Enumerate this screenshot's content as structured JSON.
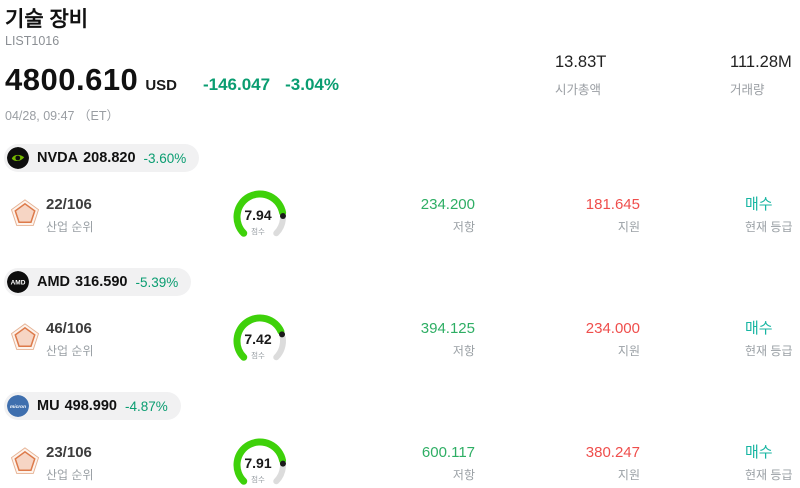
{
  "header": {
    "title": "기술 장비",
    "list_id": "LIST1016",
    "price": "4800.610",
    "currency": "USD",
    "change_abs": "-146.047",
    "change_pct": "-3.04%",
    "datetime": "04/28, 09:47 （ET）",
    "market_cap_value": "13.83T",
    "market_cap_label": "시가총액",
    "volume_value": "111.28M",
    "volume_label": "거래량"
  },
  "labels": {
    "industry_rank": "산업 순위",
    "score": "점수",
    "resistance": "저항",
    "support": "지원",
    "current_rating": "현재 등급"
  },
  "colors": {
    "accent_green": "#0a9d71",
    "resistance_green": "#2eae64",
    "support_red": "#ef4e4c",
    "buy_teal": "#17b5a2",
    "gauge_green": "#3ed10a",
    "gauge_track": "#dcdcdc",
    "badge_bg": "#f1f1f2",
    "nvidia_green": "#76b900",
    "micron_blue": "#3f6fae"
  },
  "stocks": [
    {
      "logo": "nvidia-logo",
      "ticker": "NVDA",
      "price": "208.820",
      "change": "-3.60%",
      "rank": "22/106",
      "score": "7.94",
      "resistance": "234.200",
      "support": "181.645",
      "rating": "매수"
    },
    {
      "logo": "amd-logo",
      "ticker": "AMD",
      "price": "316.590",
      "change": "-5.39%",
      "rank": "46/106",
      "score": "7.42",
      "resistance": "394.125",
      "support": "234.000",
      "rating": "매수"
    },
    {
      "logo": "micron-logo",
      "ticker": "MU",
      "price": "498.990",
      "change": "-4.87%",
      "rank": "23/106",
      "score": "7.91",
      "resistance": "600.117",
      "support": "380.247",
      "rating": "매수"
    }
  ]
}
